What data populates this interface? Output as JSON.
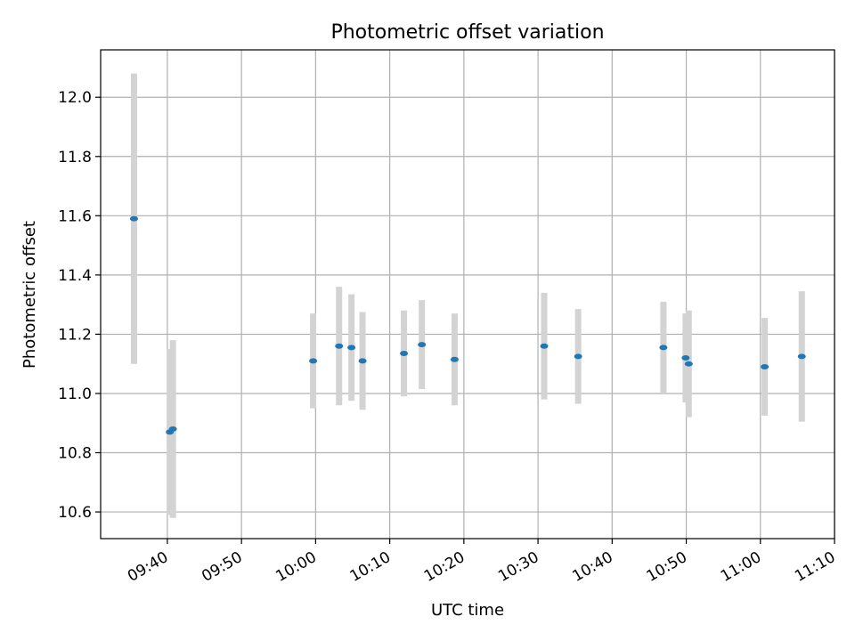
{
  "chart_data": {
    "type": "scatter",
    "title": "Photometric offset variation",
    "xlabel": "UTC time",
    "ylabel": "Photometric offset",
    "grid": true,
    "legend": "none",
    "xlim": [
      "09:31",
      "11:10"
    ],
    "ylim": [
      10.51,
      12.16
    ],
    "x_ticks": [
      "09:40",
      "09:50",
      "10:00",
      "10:10",
      "10:20",
      "10:30",
      "10:40",
      "10:50",
      "11:00",
      "11:10"
    ],
    "y_ticks": [
      "10.6",
      "10.8",
      "11.0",
      "11.2",
      "11.4",
      "11.6",
      "11.8",
      "12.0"
    ],
    "series": [
      {
        "marker_color": "#1f77b4",
        "errorbar_color": "#d3d3d3",
        "points": [
          {
            "x": "09:35:30",
            "y": 11.59,
            "err": 0.49
          },
          {
            "x": "09:40:20",
            "y": 10.87,
            "err": 0.28
          },
          {
            "x": "09:40:45",
            "y": 10.88,
            "err": 0.3
          },
          {
            "x": "09:59:40",
            "y": 11.11,
            "err": 0.16
          },
          {
            "x": "10:03:10",
            "y": 11.16,
            "err": 0.2
          },
          {
            "x": "10:04:50",
            "y": 11.155,
            "err": 0.18
          },
          {
            "x": "10:06:20",
            "y": 11.11,
            "err": 0.165
          },
          {
            "x": "10:11:55",
            "y": 11.135,
            "err": 0.145
          },
          {
            "x": "10:14:20",
            "y": 11.165,
            "err": 0.15
          },
          {
            "x": "10:18:45",
            "y": 11.115,
            "err": 0.155
          },
          {
            "x": "10:30:50",
            "y": 11.16,
            "err": 0.18
          },
          {
            "x": "10:35:25",
            "y": 11.125,
            "err": 0.16
          },
          {
            "x": "10:46:55",
            "y": 11.155,
            "err": 0.155
          },
          {
            "x": "10:49:55",
            "y": 11.12,
            "err": 0.15
          },
          {
            "x": "10:50:20",
            "y": 11.1,
            "err": 0.18
          },
          {
            "x": "11:00:35",
            "y": 11.09,
            "err": 0.165
          },
          {
            "x": "11:05:35",
            "y": 11.125,
            "err": 0.22
          }
        ]
      }
    ]
  }
}
